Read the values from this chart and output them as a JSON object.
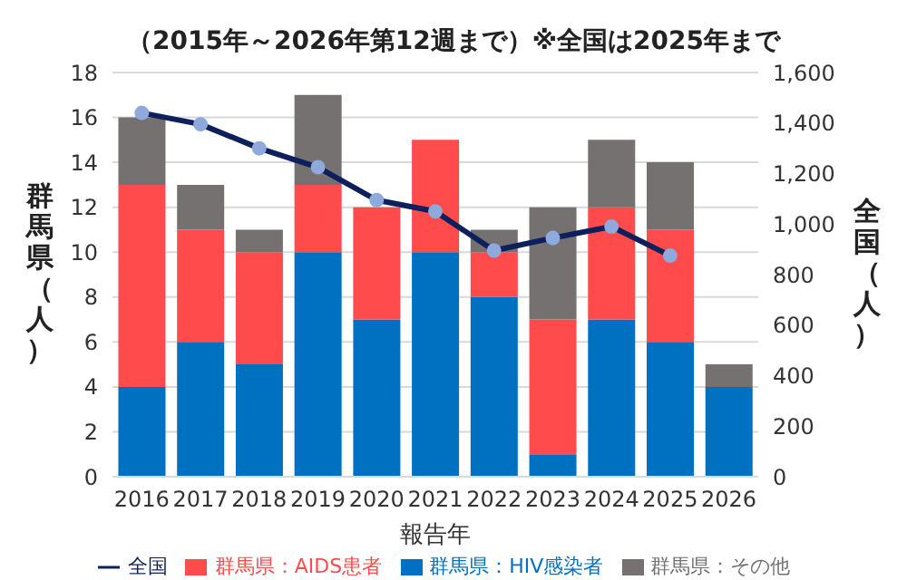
{
  "chart_data": {
    "type": "bar",
    "title": "（2015年～2026年第12週まで）※全国は2025年まで",
    "xlabel": "報告年",
    "ylabel": "群馬県（人）",
    "y2label": "全国（人）",
    "categories": [
      "2016",
      "2017",
      "2018",
      "2019",
      "2020",
      "2021",
      "2022",
      "2023",
      "2024",
      "2025",
      "2026"
    ],
    "stacked": true,
    "series": [
      {
        "name": "群馬県：HIV感染者",
        "color": "#0070c0",
        "values": [
          4,
          6,
          5,
          10,
          7,
          10,
          8,
          1,
          7,
          6,
          4
        ]
      },
      {
        "name": "群馬県：AIDS患者",
        "color": "#ff4b4b",
        "values": [
          9,
          5,
          5,
          3,
          5,
          5,
          2,
          6,
          5,
          5,
          0
        ]
      },
      {
        "name": "群馬県：その他",
        "color": "#767171",
        "values": [
          3,
          2,
          1,
          4,
          0,
          0,
          1,
          5,
          3,
          3,
          1
        ]
      },
      {
        "name": "全国",
        "type": "line",
        "axis": "y2",
        "color": "#0d1f5c",
        "marker": "circle",
        "values": [
          1440,
          1395,
          1300,
          1225,
          1095,
          1050,
          895,
          945,
          990,
          875,
          null
        ]
      }
    ],
    "ylim": [
      0,
      18
    ],
    "yticks": [
      0,
      2,
      4,
      6,
      8,
      10,
      12,
      14,
      16,
      18
    ],
    "y2lim": [
      0,
      1600
    ],
    "y2ticks": [
      {
        "value": 0,
        "label": "0"
      },
      {
        "value": 200,
        "label": "200"
      },
      {
        "value": 400,
        "label": "400"
      },
      {
        "value": 600,
        "label": "600"
      },
      {
        "value": 800,
        "label": "800"
      },
      {
        "value": 1000,
        "label": "1,000"
      },
      {
        "value": 1200,
        "label": "1,200"
      },
      {
        "value": 1400,
        "label": "1,400"
      },
      {
        "value": 1600,
        "label": "1,600"
      }
    ],
    "grid": "y",
    "legend": "bottom"
  }
}
